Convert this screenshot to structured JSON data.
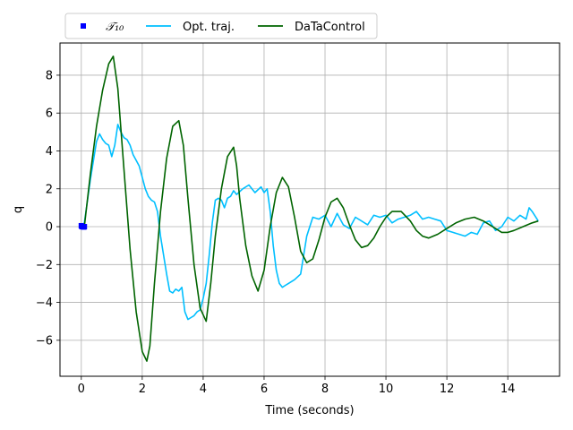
{
  "chart_data": {
    "type": "line",
    "xlabel": "Time (seconds)",
    "ylabel": "q",
    "xlim": [
      -0.7,
      15.7
    ],
    "ylim": [
      -7.9,
      9.7
    ],
    "xticks": [
      0,
      2,
      4,
      6,
      8,
      10,
      12,
      14
    ],
    "yticks": [
      -6,
      -4,
      -2,
      0,
      2,
      4,
      6,
      8
    ],
    "xtick_labels": [
      "0",
      "2",
      "4",
      "6",
      "8",
      "10",
      "12",
      "14"
    ],
    "ytick_labels": [
      "−6",
      "−4",
      "−2",
      "0",
      "2",
      "4",
      "6",
      "8"
    ],
    "grid": true,
    "legend_placement": "above plot, left",
    "series": [
      {
        "name": "𝒯₁₀",
        "style": "markers",
        "color": "#0000ff",
        "x": [
          0.0,
          0.02,
          0.04,
          0.06,
          0.08,
          0.1
        ],
        "y": [
          0.05,
          0.0,
          0.0,
          0.0,
          -0.02,
          0.0
        ]
      },
      {
        "name": "Opt. traj.",
        "style": "line",
        "color": "#00bfff",
        "x": [
          0.0,
          0.1,
          0.3,
          0.5,
          0.6,
          0.7,
          0.8,
          0.9,
          1.0,
          1.05,
          1.1,
          1.2,
          1.25,
          1.3,
          1.4,
          1.5,
          1.6,
          1.7,
          1.8,
          1.9,
          2.0,
          2.05,
          2.1,
          2.2,
          2.3,
          2.4,
          2.5,
          2.6,
          2.7,
          2.8,
          2.9,
          3.0,
          3.1,
          3.2,
          3.3,
          3.4,
          3.5,
          3.6,
          3.7,
          3.8,
          3.9,
          4.0,
          4.1,
          4.2,
          4.3,
          4.4,
          4.5,
          4.6,
          4.7,
          4.8,
          4.9,
          5.0,
          5.1,
          5.3,
          5.5,
          5.7,
          5.9,
          6.0,
          6.1,
          6.2,
          6.3,
          6.4,
          6.5,
          6.6,
          6.7,
          6.8,
          6.9,
          7.0,
          7.2,
          7.4,
          7.6,
          7.8,
          8.0,
          8.2,
          8.4,
          8.6,
          8.8,
          9.0,
          9.2,
          9.4,
          9.6,
          9.8,
          10.0,
          10.2,
          10.4,
          10.6,
          10.8,
          11.0,
          11.2,
          11.4,
          11.6,
          11.8,
          12.0,
          12.2,
          12.4,
          12.6,
          12.8,
          13.0,
          13.2,
          13.4,
          13.6,
          13.8,
          14.0,
          14.2,
          14.4,
          14.6,
          14.7,
          14.8,
          15.0
        ],
        "y": [
          0.0,
          0.2,
          2.5,
          4.5,
          4.9,
          4.6,
          4.4,
          4.3,
          3.7,
          4.0,
          4.3,
          5.4,
          5.2,
          5.0,
          4.7,
          4.6,
          4.3,
          3.8,
          3.5,
          3.2,
          2.6,
          2.3,
          2.0,
          1.6,
          1.4,
          1.3,
          0.8,
          -0.5,
          -1.5,
          -2.5,
          -3.4,
          -3.5,
          -3.3,
          -3.4,
          -3.2,
          -4.5,
          -4.9,
          -4.8,
          -4.7,
          -4.5,
          -4.4,
          -3.8,
          -3.0,
          -1.5,
          0.2,
          1.4,
          1.5,
          1.4,
          1.0,
          1.5,
          1.6,
          1.9,
          1.7,
          2.0,
          2.2,
          1.8,
          2.1,
          1.8,
          2.0,
          0.8,
          -1.0,
          -2.3,
          -3.0,
          -3.2,
          -3.1,
          -3.0,
          -2.9,
          -2.8,
          -2.5,
          -0.5,
          0.5,
          0.4,
          0.6,
          0.0,
          0.7,
          0.1,
          -0.1,
          0.5,
          0.3,
          0.1,
          0.6,
          0.5,
          0.6,
          0.2,
          0.4,
          0.5,
          0.6,
          0.8,
          0.4,
          0.5,
          0.4,
          0.3,
          -0.2,
          -0.3,
          -0.4,
          -0.5,
          -0.3,
          -0.4,
          0.2,
          0.3,
          -0.2,
          0.0,
          0.5,
          0.3,
          0.6,
          0.4,
          1.0,
          0.8,
          0.3
        ]
      },
      {
        "name": "DaTaControl",
        "style": "line",
        "color": "#006400",
        "x": [
          0.1,
          0.3,
          0.5,
          0.7,
          0.9,
          1.05,
          1.2,
          1.4,
          1.6,
          1.8,
          2.0,
          2.15,
          2.25,
          2.4,
          2.6,
          2.8,
          3.0,
          3.2,
          3.35,
          3.5,
          3.7,
          3.9,
          4.1,
          4.25,
          4.4,
          4.6,
          4.8,
          5.0,
          5.1,
          5.2,
          5.4,
          5.6,
          5.8,
          6.0,
          6.2,
          6.4,
          6.6,
          6.8,
          7.0,
          7.2,
          7.4,
          7.6,
          7.8,
          8.0,
          8.2,
          8.4,
          8.6,
          8.8,
          9.0,
          9.2,
          9.4,
          9.6,
          9.8,
          10.0,
          10.2,
          10.5,
          10.8,
          11.0,
          11.2,
          11.4,
          11.7,
          12.0,
          12.3,
          12.6,
          12.9,
          13.2,
          13.5,
          13.8,
          14.0,
          14.2,
          14.5,
          14.8,
          15.0
        ],
        "y": [
          0.0,
          2.8,
          5.3,
          7.2,
          8.6,
          9.0,
          7.3,
          3.0,
          -1.2,
          -4.5,
          -6.6,
          -7.1,
          -6.3,
          -3.0,
          0.8,
          3.6,
          5.3,
          5.6,
          4.3,
          1.5,
          -2.0,
          -4.3,
          -5.0,
          -3.0,
          -0.5,
          2.0,
          3.7,
          4.2,
          3.2,
          1.5,
          -1.0,
          -2.6,
          -3.4,
          -2.3,
          0.0,
          1.8,
          2.6,
          2.1,
          0.5,
          -1.3,
          -1.9,
          -1.7,
          -0.7,
          0.5,
          1.3,
          1.5,
          1.0,
          0.1,
          -0.7,
          -1.1,
          -1.0,
          -0.6,
          0.0,
          0.5,
          0.8,
          0.8,
          0.3,
          -0.2,
          -0.5,
          -0.6,
          -0.4,
          -0.1,
          0.2,
          0.4,
          0.5,
          0.3,
          0.0,
          -0.3,
          -0.3,
          -0.2,
          0.0,
          0.2,
          0.3
        ]
      }
    ]
  }
}
